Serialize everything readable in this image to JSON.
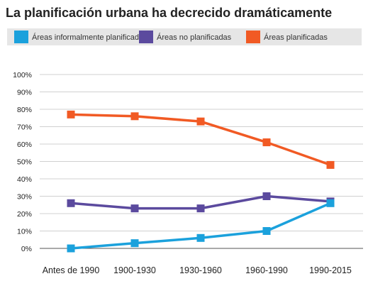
{
  "chart_data": {
    "type": "line",
    "title": "La planificación urbana ha decrecido dramáticamente",
    "categories": [
      "Antes de  1990",
      "1900-1930",
      "1930-1960",
      "1960-1990",
      "1990-2015"
    ],
    "ylim": [
      0,
      100
    ],
    "y_ticks": [
      0,
      10,
      20,
      30,
      40,
      50,
      60,
      70,
      80,
      90,
      100
    ],
    "y_tick_labels": [
      "0%",
      "10%",
      "20%",
      "30%",
      "40%",
      "50%",
      "60%",
      "70%",
      "80%",
      "90%",
      "100%"
    ],
    "grid": true,
    "legend_position": "top",
    "xlabel": "",
    "ylabel": "",
    "series": [
      {
        "name": "Áreas informalmente planificadas",
        "color": "#1ba1dc",
        "values": [
          0,
          3,
          6,
          10,
          26
        ]
      },
      {
        "name": "Áreas no planificadas",
        "color": "#5b4a9e",
        "values": [
          26,
          23,
          23,
          30,
          27
        ]
      },
      {
        "name": "Áreas planificadas",
        "color": "#f15a24",
        "values": [
          77,
          76,
          73,
          61,
          48
        ]
      }
    ]
  }
}
